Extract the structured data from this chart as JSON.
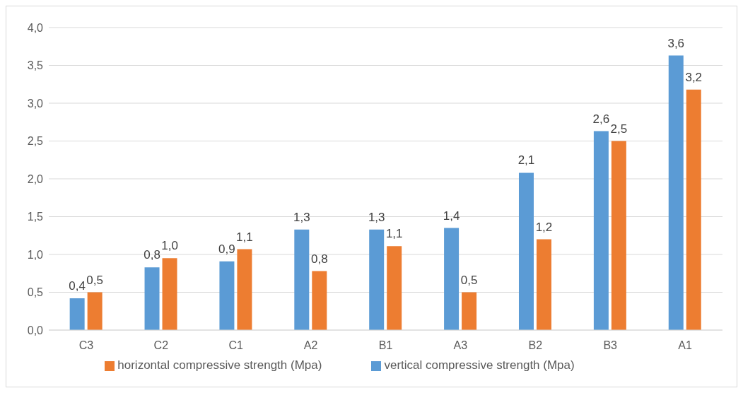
{
  "chart_data": {
    "type": "bar",
    "categories": [
      "C3",
      "C2",
      "C1",
      "A2",
      "B1",
      "A3",
      "B2",
      "B3",
      "A1"
    ],
    "series": [
      {
        "name": "vertical compressive strength (Mpa)",
        "color": "#5b9bd5",
        "values": [
          0.42,
          0.83,
          0.91,
          1.33,
          1.33,
          1.35,
          2.08,
          2.63,
          3.63
        ],
        "value_labels": [
          "0,4",
          "0,8",
          "0,9",
          "1,3",
          "1,3",
          "1,4",
          "2,1",
          "2,6",
          "3,6"
        ]
      },
      {
        "name": "horizontal compressive strength (Mpa)",
        "color": "#ed7d31",
        "values": [
          0.5,
          0.95,
          1.07,
          0.78,
          1.11,
          0.5,
          1.2,
          2.5,
          3.18
        ],
        "value_labels": [
          "0,5",
          "1,0",
          "1,1",
          "0,8",
          "1,1",
          "0,5",
          "1,2",
          "2,5",
          "3,2"
        ]
      }
    ],
    "ylim": [
      0,
      4
    ],
    "yticks": [
      {
        "value": 0,
        "label": "0,0"
      },
      {
        "value": 0.5,
        "label": "0,5"
      },
      {
        "value": 1,
        "label": "1,0"
      },
      {
        "value": 1.5,
        "label": "1,5"
      },
      {
        "value": 2,
        "label": "2,0"
      },
      {
        "value": 2.5,
        "label": "2,5"
      },
      {
        "value": 3,
        "label": "3,0"
      },
      {
        "value": 3.5,
        "label": "3,5"
      },
      {
        "value": 4,
        "label": "4,0"
      }
    ],
    "grid": "y",
    "legend": "bottom"
  }
}
